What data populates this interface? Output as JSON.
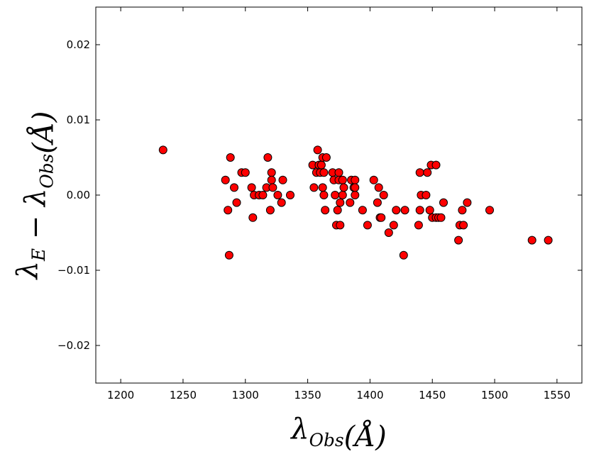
{
  "chart_data": {
    "type": "scatter",
    "title": "",
    "xlabel": "λ_Obs(Å)",
    "ylabel": "λ_E − λ_Obs(Å)",
    "xlim": [
      1180,
      1570
    ],
    "ylim": [
      -0.025,
      0.025
    ],
    "x_ticks": [
      1200,
      1250,
      1300,
      1350,
      1400,
      1450,
      1500,
      1550
    ],
    "y_ticks": [
      -0.02,
      -0.01,
      0.0,
      0.01,
      0.02
    ],
    "x_tick_labels": [
      "1200",
      "1250",
      "1300",
      "1350",
      "1400",
      "1450",
      "1500",
      "1550"
    ],
    "y_tick_labels": [
      "−0.02",
      "−0.01",
      "0.00",
      "0.01",
      "0.02"
    ],
    "grid": false,
    "marker": {
      "shape": "circle",
      "color": "#ff0000",
      "edge_color": "#000000"
    },
    "points": [
      [
        1234,
        0.006
      ],
      [
        1284,
        0.002
      ],
      [
        1286,
        -0.002
      ],
      [
        1287,
        -0.008
      ],
      [
        1288,
        0.005
      ],
      [
        1291,
        0.001
      ],
      [
        1293,
        -0.001
      ],
      [
        1297,
        0.003
      ],
      [
        1300,
        0.003
      ],
      [
        1305,
        0.001
      ],
      [
        1306,
        -0.003
      ],
      [
        1307,
        0.0
      ],
      [
        1311,
        0.0
      ],
      [
        1314,
        0.0
      ],
      [
        1317,
        0.001
      ],
      [
        1318,
        0.005
      ],
      [
        1320,
        -0.002
      ],
      [
        1321,
        0.003
      ],
      [
        1321,
        0.002
      ],
      [
        1322,
        0.001
      ],
      [
        1326,
        0.0
      ],
      [
        1329,
        -0.001
      ],
      [
        1330,
        0.002
      ],
      [
        1336,
        0.0
      ],
      [
        1354,
        0.004
      ],
      [
        1355,
        0.001
      ],
      [
        1357,
        0.003
      ],
      [
        1358,
        0.006
      ],
      [
        1359,
        0.004
      ],
      [
        1360,
        0.003
      ],
      [
        1361,
        0.004
      ],
      [
        1362,
        0.005
      ],
      [
        1362,
        0.001
      ],
      [
        1363,
        0.003
      ],
      [
        1363,
        0.0
      ],
      [
        1364,
        -0.002
      ],
      [
        1365,
        0.005
      ],
      [
        1370,
        0.003
      ],
      [
        1371,
        0.002
      ],
      [
        1372,
        0.0
      ],
      [
        1373,
        -0.004
      ],
      [
        1374,
        -0.002
      ],
      [
        1375,
        0.003
      ],
      [
        1375,
        0.002
      ],
      [
        1376,
        -0.004
      ],
      [
        1376,
        -0.001
      ],
      [
        1378,
        0.0
      ],
      [
        1378,
        0.002
      ],
      [
        1379,
        0.001
      ],
      [
        1384,
        -0.001
      ],
      [
        1385,
        0.002
      ],
      [
        1387,
        0.001
      ],
      [
        1388,
        0.002
      ],
      [
        1388,
        0.0
      ],
      [
        1388,
        0.001
      ],
      [
        1394,
        -0.002
      ],
      [
        1398,
        -0.004
      ],
      [
        1403,
        0.002
      ],
      [
        1406,
        -0.001
      ],
      [
        1407,
        0.001
      ],
      [
        1408,
        -0.003
      ],
      [
        1409,
        -0.003
      ],
      [
        1411,
        0.0
      ],
      [
        1415,
        -0.005
      ],
      [
        1419,
        -0.004
      ],
      [
        1421,
        -0.002
      ],
      [
        1427,
        -0.008
      ],
      [
        1428,
        -0.002
      ],
      [
        1439,
        -0.004
      ],
      [
        1440,
        -0.002
      ],
      [
        1440,
        0.003
      ],
      [
        1441,
        0.0
      ],
      [
        1445,
        0.0
      ],
      [
        1446,
        0.003
      ],
      [
        1448,
        -0.002
      ],
      [
        1449,
        0.004
      ],
      [
        1450,
        -0.003
      ],
      [
        1453,
        -0.003
      ],
      [
        1453,
        0.004
      ],
      [
        1455,
        -0.003
      ],
      [
        1457,
        -0.003
      ],
      [
        1459,
        -0.001
      ],
      [
        1471,
        -0.006
      ],
      [
        1472,
        -0.004
      ],
      [
        1474,
        -0.002
      ],
      [
        1475,
        -0.004
      ],
      [
        1478,
        -0.001
      ],
      [
        1496,
        -0.002
      ],
      [
        1530,
        -0.006
      ],
      [
        1543,
        -0.006
      ]
    ]
  }
}
